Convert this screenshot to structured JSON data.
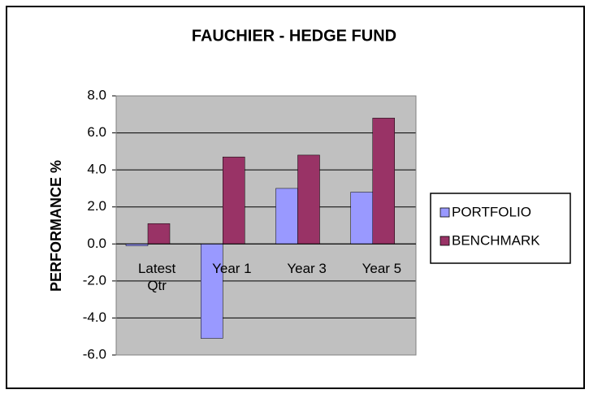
{
  "chart_data": {
    "type": "bar",
    "title": "FAUCHIER - HEDGE FUND",
    "y_label": "PERFORMANCE %",
    "categories": [
      "Latest Qtr",
      "Year 1",
      "Year 3",
      "Year 5"
    ],
    "series": [
      {
        "name": "PORTFOLIO",
        "color": "#9999ff",
        "values": [
          -0.1,
          -5.1,
          3.0,
          2.8
        ]
      },
      {
        "name": "BENCHMARK",
        "color": "#993366",
        "values": [
          1.1,
          4.7,
          4.8,
          6.8
        ]
      }
    ],
    "ylim": [
      -6,
      8
    ],
    "yticks": [
      {
        "value": -6,
        "label": "-6.0"
      },
      {
        "value": -4,
        "label": "-4.0"
      },
      {
        "value": -2,
        "label": "-2.0"
      },
      {
        "value": 0,
        "label": "0.0"
      },
      {
        "value": 2,
        "label": "2.0"
      },
      {
        "value": 4,
        "label": "4.0"
      },
      {
        "value": 6,
        "label": "6.0"
      },
      {
        "value": 8,
        "label": "8.0"
      }
    ],
    "grid": true,
    "legend": "right"
  }
}
